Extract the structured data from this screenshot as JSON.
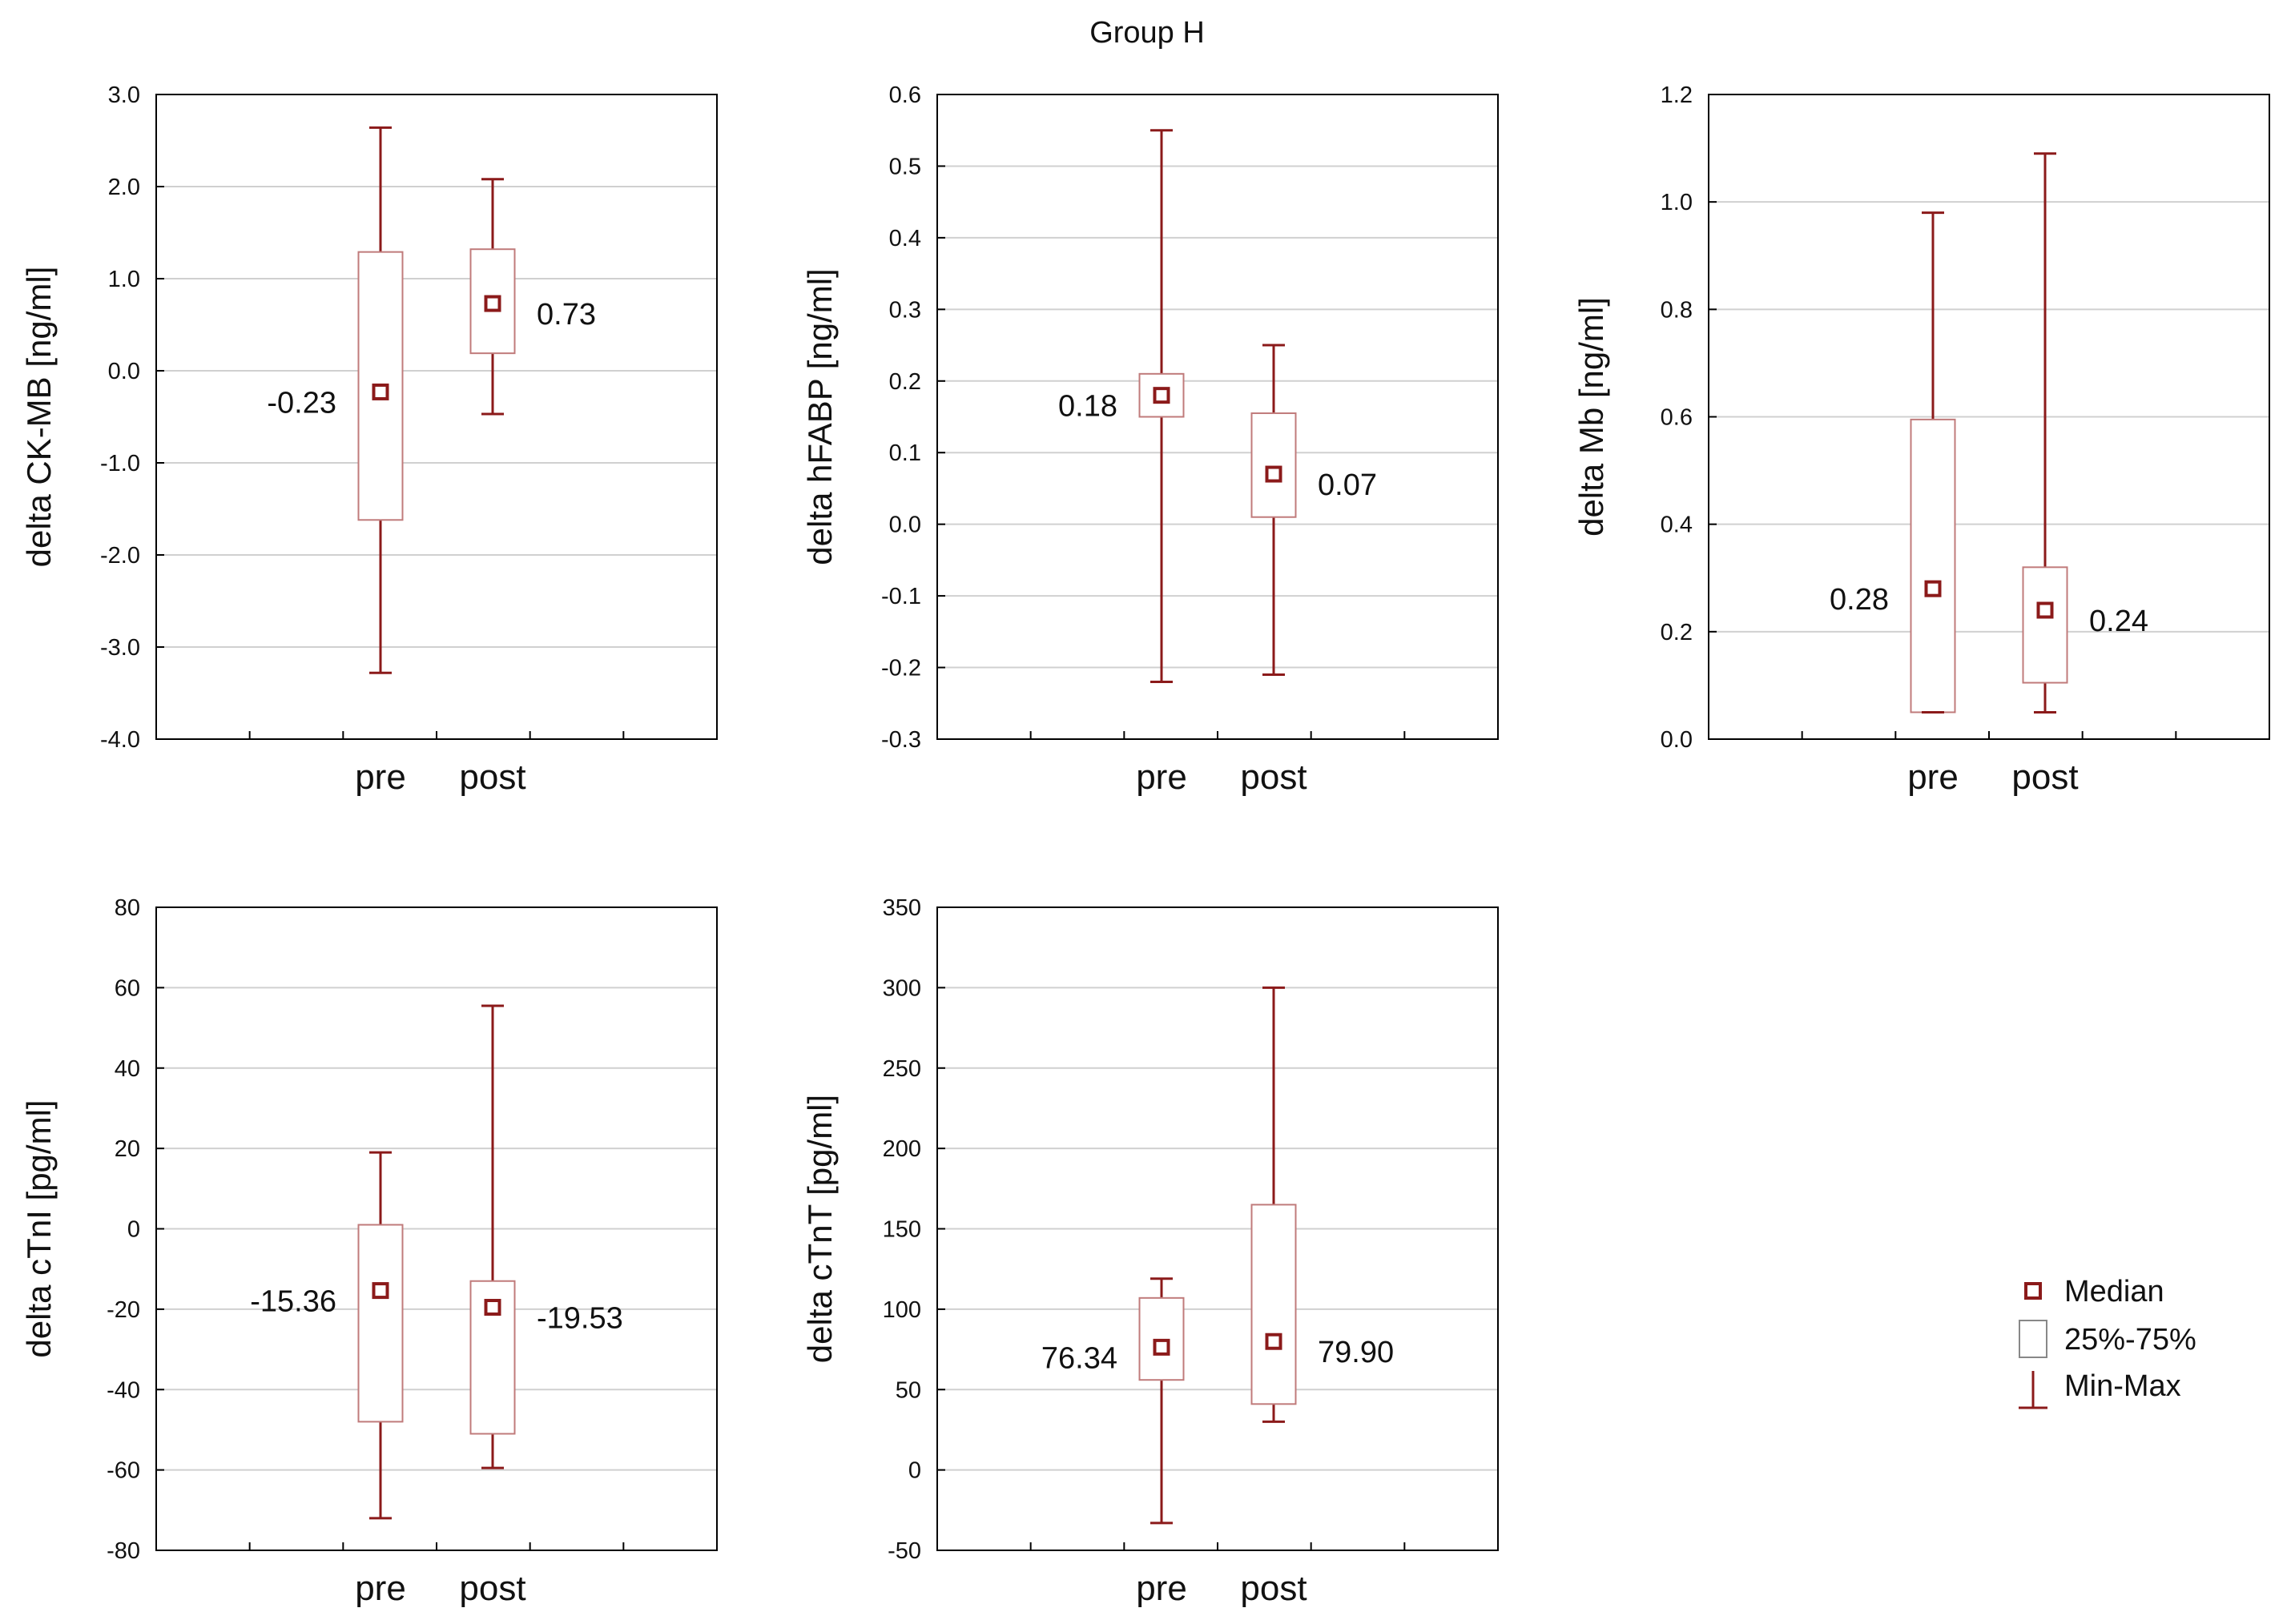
{
  "title": "Group H",
  "colors": {
    "accent": "#8B1A1A",
    "box_stroke": "#C07B7B",
    "grid": "#D0D0D0",
    "axis": "#000000"
  },
  "legend": [
    {
      "key": "median",
      "label": "Median",
      "icon": "median-square-icon"
    },
    {
      "key": "iqr",
      "label": "25%-75%",
      "icon": "box-icon"
    },
    {
      "key": "range",
      "label": "Min-Max",
      "icon": "whisker-icon"
    }
  ],
  "chart_data": [
    {
      "type": "boxplot",
      "ylabel": "delta CK-MB [ng/ml]",
      "ylim": [
        -4.0,
        3.0
      ],
      "yticks": [
        3.0,
        2.0,
        1.0,
        0.0,
        -1.0,
        -2.0,
        -3.0,
        -4.0
      ],
      "yticklabels": [
        "3.0",
        "2.0",
        "1.0",
        "0.0",
        "-1.0",
        "-2.0",
        "-3.0",
        "-4.0"
      ],
      "categories": [
        "pre",
        "post"
      ],
      "boxes": [
        {
          "name": "pre",
          "min": -3.28,
          "q1": -1.62,
          "median": -0.23,
          "q3": 1.29,
          "max": 2.64,
          "label": "-0.23",
          "label_side": "left"
        },
        {
          "name": "post",
          "min": -0.47,
          "q1": 0.19,
          "median": 0.73,
          "q3": 1.32,
          "max": 2.08,
          "label": "0.73",
          "label_side": "right"
        }
      ]
    },
    {
      "type": "boxplot",
      "ylabel": "delta hFABP [ng/ml]",
      "ylim": [
        -0.3,
        0.6
      ],
      "yticks": [
        0.6,
        0.5,
        0.4,
        0.3,
        0.2,
        0.1,
        0.0,
        -0.1,
        -0.2,
        -0.3
      ],
      "yticklabels": [
        "0.6",
        "0.5",
        "0.4",
        "0.3",
        "0.2",
        "0.1",
        "0.0",
        "-0.1",
        "-0.2",
        "-0.3"
      ],
      "categories": [
        "pre",
        "post"
      ],
      "boxes": [
        {
          "name": "pre",
          "min": -0.22,
          "q1": 0.15,
          "median": 0.18,
          "q3": 0.21,
          "max": 0.55,
          "label": "0.18",
          "label_side": "left"
        },
        {
          "name": "post",
          "min": -0.21,
          "q1": 0.01,
          "median": 0.07,
          "q3": 0.155,
          "max": 0.25,
          "label": "0.07",
          "label_side": "right"
        }
      ]
    },
    {
      "type": "boxplot",
      "ylabel": "delta Mb [ng/ml]",
      "ylim": [
        0.0,
        1.2
      ],
      "yticks": [
        1.2,
        1.0,
        0.8,
        0.6,
        0.4,
        0.2,
        0.0
      ],
      "yticklabels": [
        "1.2",
        "1.0",
        "0.8",
        "0.6",
        "0.4",
        "0.2",
        "0.0"
      ],
      "categories": [
        "pre",
        "post"
      ],
      "boxes": [
        {
          "name": "pre",
          "min": 0.05,
          "q1": 0.05,
          "median": 0.28,
          "q3": 0.595,
          "max": 0.98,
          "label": "0.28",
          "label_side": "left"
        },
        {
          "name": "post",
          "min": 0.05,
          "q1": 0.105,
          "median": 0.24,
          "q3": 0.32,
          "max": 1.09,
          "label": "0.24",
          "label_side": "right"
        }
      ]
    },
    {
      "type": "boxplot",
      "ylabel": "delta cTnI [pg/ml]",
      "ylim": [
        -80,
        80
      ],
      "yticks": [
        80,
        60,
        40,
        20,
        0,
        -20,
        -40,
        -60,
        -80
      ],
      "yticklabels": [
        "80",
        "60",
        "40",
        "20",
        "0",
        "-20",
        "-40",
        "-60",
        "-80"
      ],
      "categories": [
        "pre",
        "post"
      ],
      "boxes": [
        {
          "name": "pre",
          "min": -72,
          "q1": -48,
          "median": -15.36,
          "q3": 1,
          "max": 19,
          "label": "-15.36",
          "label_side": "left"
        },
        {
          "name": "post",
          "min": -59.5,
          "q1": -51,
          "median": -19.53,
          "q3": -13,
          "max": 55.5,
          "label": "-19.53",
          "label_side": "right"
        }
      ]
    },
    {
      "type": "boxplot",
      "ylabel": "delta cTnT [pg/ml]",
      "ylim": [
        -50,
        350
      ],
      "yticks": [
        350,
        300,
        250,
        200,
        150,
        100,
        50,
        0,
        -50
      ],
      "yticklabels": [
        "350",
        "300",
        "250",
        "200",
        "150",
        "100",
        "50",
        "0",
        "-50"
      ],
      "categories": [
        "pre",
        "post"
      ],
      "boxes": [
        {
          "name": "pre",
          "min": -33,
          "q1": 56,
          "median": 76.34,
          "q3": 107,
          "max": 119,
          "label": "76.34",
          "label_side": "left"
        },
        {
          "name": "post",
          "min": 30,
          "q1": 41,
          "median": 79.9,
          "q3": 165,
          "max": 300,
          "label": "79.90",
          "label_side": "right"
        }
      ]
    }
  ]
}
